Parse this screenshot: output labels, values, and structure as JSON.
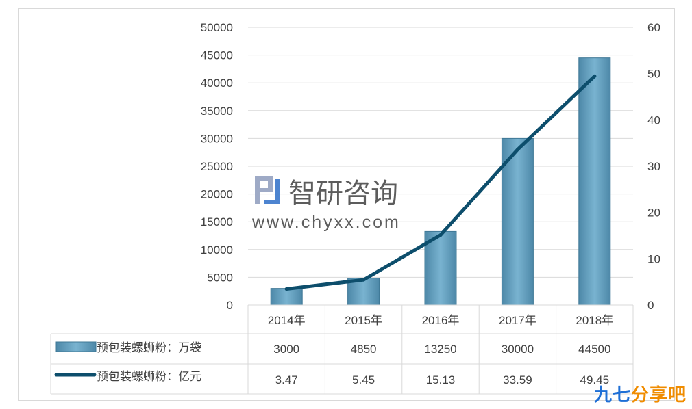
{
  "watermark": {
    "logo_text": "智研咨询",
    "url": "www.chyxx.com"
  },
  "brand_badge": {
    "part1": "九七",
    "part2": "分享吧"
  },
  "colors": {
    "bar": "#5e9cbd",
    "bar_dark": "#3f7896",
    "line": "#0d4e6c",
    "grid": "#d9d9d9"
  },
  "chart_data": {
    "type": "bar",
    "categories": [
      "2014年",
      "2015年",
      "2016年",
      "2017年",
      "2018年"
    ],
    "series": [
      {
        "name": "预包装螺蛳粉：万袋",
        "type": "bar",
        "axis": "left",
        "values": [
          3000,
          4850,
          13250,
          30000,
          44500
        ],
        "value_labels": [
          "3000",
          "4850",
          "13250",
          "30000",
          "44500"
        ]
      },
      {
        "name": "预包装螺蛳粉：亿元",
        "type": "line",
        "axis": "right",
        "values": [
          3.47,
          5.45,
          15.13,
          33.59,
          49.45
        ],
        "value_labels": [
          "3.47",
          "5.45",
          "15.13",
          "33.59",
          "49.45"
        ]
      }
    ],
    "y_left": {
      "min": 0,
      "max": 50000,
      "ticks": [
        "0",
        "5000",
        "10000",
        "15000",
        "20000",
        "25000",
        "30000",
        "35000",
        "40000",
        "45000",
        "50000"
      ]
    },
    "y_right": {
      "min": 0,
      "max": 60,
      "ticks": [
        "0",
        "10",
        "20",
        "30",
        "40",
        "50",
        "60"
      ]
    },
    "grid": true,
    "legend": "data-table"
  }
}
